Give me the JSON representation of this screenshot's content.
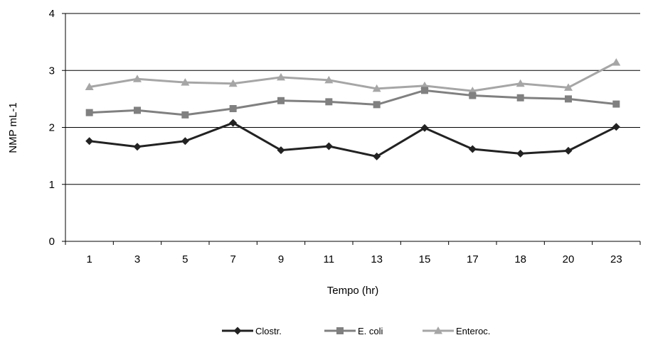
{
  "chart_data": {
    "type": "line",
    "categories": [
      "1",
      "3",
      "5",
      "7",
      "9",
      "11",
      "13",
      "15",
      "17",
      "18",
      "20",
      "23"
    ],
    "series": [
      {
        "name": "Clostr.",
        "marker": "diamond",
        "color": "#222222",
        "values": [
          1.76,
          1.66,
          1.76,
          2.08,
          1.6,
          1.67,
          1.49,
          1.99,
          1.62,
          1.54,
          1.59,
          2.01
        ]
      },
      {
        "name": "E. coli",
        "marker": "square",
        "color": "#808080",
        "values": [
          2.26,
          2.3,
          2.22,
          2.33,
          2.47,
          2.45,
          2.4,
          2.65,
          2.56,
          2.52,
          2.5,
          2.41
        ]
      },
      {
        "name": "Enteroc.",
        "marker": "triangle",
        "color": "#a6a6a6",
        "values": [
          2.71,
          2.85,
          2.79,
          2.77,
          2.88,
          2.83,
          2.68,
          2.73,
          2.64,
          2.77,
          2.7,
          3.14
        ]
      }
    ],
    "title": "",
    "xlabel": "Tempo (hr)",
    "ylabel": "NMP mL-1",
    "ylim": [
      0,
      4
    ],
    "yticks": [
      "0",
      "1",
      "2",
      "3",
      "4"
    ],
    "grid": true,
    "legend": "bottom"
  }
}
